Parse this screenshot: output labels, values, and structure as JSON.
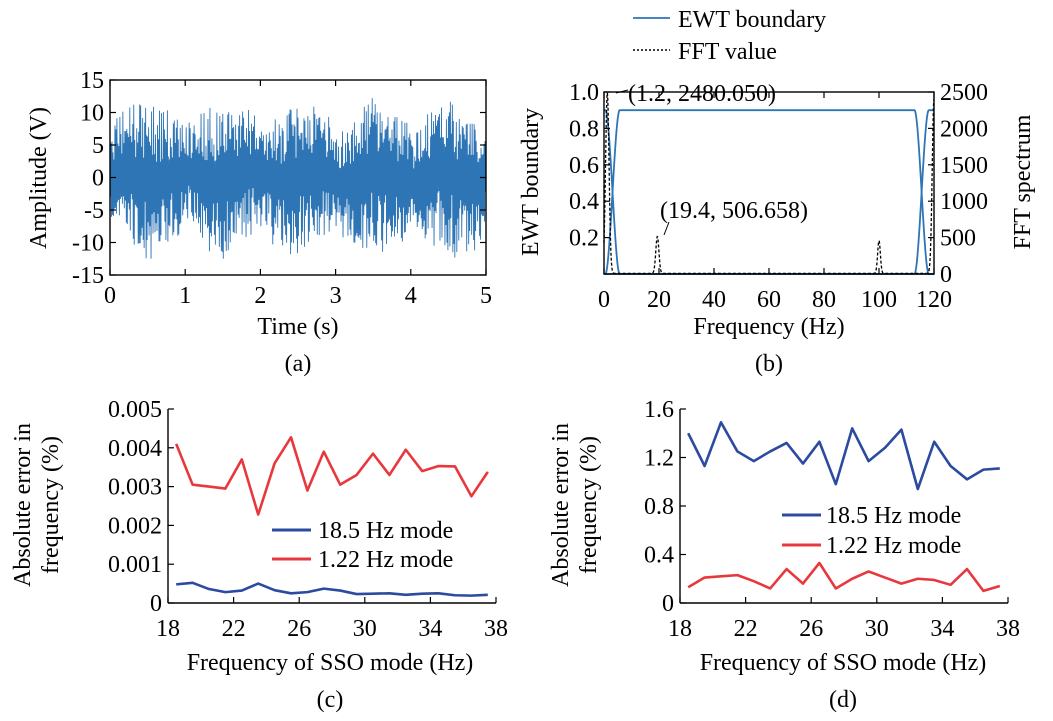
{
  "colors": {
    "blue": "#2e75b6",
    "navy": "#2b4aa0",
    "red": "#e8383d",
    "black": "#000000"
  },
  "chart_data": [
    {
      "panel": "(a)",
      "type": "line",
      "title": "",
      "xlabel": "Time (s)",
      "ylabel": "Amplitude (V)",
      "xlim": [
        0,
        5
      ],
      "ylim": [
        -15,
        15
      ],
      "xticks": [
        0,
        1,
        2,
        3,
        4,
        5
      ],
      "yticks": [
        -15,
        -10,
        -5,
        0,
        5,
        10,
        15
      ],
      "grid": false,
      "series": [
        {
          "color": "#2e75b6",
          "signal": "oscillatory waveform, amplitude about ±12 V, peaks about 12.5 V near t = 0.2 s, troughs about -12.5 V near t = 0.5 s",
          "x_range": [
            0,
            5
          ],
          "y_extent": [
            -12.5,
            12.5
          ]
        }
      ]
    },
    {
      "panel": "(b)",
      "type": "line",
      "title": "",
      "xlabel": "Frequency (Hz)",
      "ylabel": "EWT boundary",
      "y2label": "FFT spectrum",
      "xlim": [
        0,
        120
      ],
      "ylim": [
        0,
        1
      ],
      "y2lim": [
        0,
        2500
      ],
      "xticks": [
        0,
        20,
        40,
        60,
        80,
        100,
        120
      ],
      "yticks": [
        0.2,
        0.4,
        0.6,
        0.8,
        1.0
      ],
      "ytick_labels": [
        "0.2",
        "0.4",
        "0.6",
        "0.8",
        "1.0"
      ],
      "y2ticks": [
        0,
        500,
        1000,
        1500,
        2000,
        2500
      ],
      "grid": false,
      "legend": {
        "placement": "top",
        "entries": [
          "EWT boundary",
          "FFT value"
        ]
      },
      "annotations": [
        {
          "text": "(1.2, 2480.050)",
          "x": 1.2,
          "y": 2480.05
        },
        {
          "text": "(19.4, 506.658)",
          "x": 19.4,
          "y": 506.658
        }
      ],
      "series": [
        {
          "name": "EWT boundary",
          "color": "#2e75b6",
          "axis": "left",
          "plateau": 0.9,
          "boundaries": [
            3.1,
            115.5
          ],
          "transition_halfwidth": 2.6
        },
        {
          "name": "FFT value",
          "color": "#000000",
          "axis": "right",
          "dashed": true,
          "peaks": [
            {
              "x": 1.2,
              "y": 2480.05,
              "width": 0.9
            },
            {
              "x": 19.4,
              "y": 506.658,
              "width": 0.8
            },
            {
              "x": 100.0,
              "y": 450,
              "width": 0.7
            },
            {
              "x": 120.0,
              "y": 2400,
              "width": 0.9
            }
          ]
        }
      ]
    },
    {
      "panel": "(c)",
      "type": "line",
      "title": "",
      "xlabel": "Frequency of SSO mode (Hz)",
      "ylabel": [
        "Absolute error in",
        "frequency (%)"
      ],
      "xlim": [
        18,
        38
      ],
      "ylim": [
        0,
        0.005
      ],
      "xticks": [
        18,
        22,
        26,
        30,
        34,
        38
      ],
      "yticks": [
        0,
        0.001,
        0.002,
        0.003,
        0.004,
        0.005
      ],
      "ytick_labels": [
        "0",
        "0.001",
        "0.002",
        "0.003",
        "0.004",
        "0.005"
      ],
      "grid": false,
      "legend": {
        "placement": "bottom-right",
        "entries": [
          "18.5 Hz mode",
          "1.22 Hz mode"
        ]
      },
      "categories": [
        18.5,
        19.5,
        20.5,
        21.5,
        22.5,
        23.5,
        24.5,
        25.5,
        26.5,
        27.5,
        28.5,
        29.5,
        30.5,
        31.5,
        32.5,
        33.5,
        34.5,
        35.5,
        36.5,
        37.5
      ],
      "series": [
        {
          "name": "18.5 Hz mode",
          "color": "#2b4aa0",
          "values": [
            0.00048,
            0.00052,
            0.00036,
            0.00028,
            0.00032,
            0.0005,
            0.00033,
            0.00025,
            0.00028,
            0.00037,
            0.00032,
            0.00023,
            0.00024,
            0.00025,
            0.00021,
            0.00024,
            0.00025,
            0.0002,
            0.00019,
            0.00021
          ]
        },
        {
          "name": "1.22 Hz mode",
          "color": "#e8383d",
          "values": [
            0.0041,
            0.00305,
            0.003,
            0.00295,
            0.0037,
            0.00228,
            0.0036,
            0.00427,
            0.0029,
            0.0039,
            0.00305,
            0.0033,
            0.00385,
            0.0033,
            0.00395,
            0.0034,
            0.00353,
            0.00352,
            0.00275,
            0.00338
          ]
        }
      ]
    },
    {
      "panel": "(d)",
      "type": "line",
      "title": "",
      "xlabel": "Frequency of SSO mode (Hz)",
      "ylabel": [
        "Absolute error in",
        "frequency (%)"
      ],
      "xlim": [
        18,
        38
      ],
      "ylim": [
        0,
        1.6
      ],
      "xticks": [
        18,
        22,
        26,
        30,
        34,
        38
      ],
      "yticks": [
        0,
        0.4,
        0.8,
        1.2,
        1.6
      ],
      "ytick_labels": [
        "0",
        "0.4",
        "0.8",
        "1.2",
        "1.6"
      ],
      "grid": false,
      "legend": {
        "placement": "middle-right",
        "entries": [
          "18.5 Hz mode",
          "1.22 Hz mode"
        ]
      },
      "categories": [
        18.5,
        19.5,
        20.5,
        21.5,
        22.5,
        23.5,
        24.5,
        25.5,
        26.5,
        27.5,
        28.5,
        29.5,
        30.5,
        31.5,
        32.5,
        33.5,
        34.5,
        35.5,
        36.5,
        37.5
      ],
      "series": [
        {
          "name": "18.5 Hz mode",
          "color": "#2b4aa0",
          "values": [
            1.4,
            1.13,
            1.49,
            1.25,
            1.17,
            1.25,
            1.32,
            1.15,
            1.33,
            0.98,
            1.44,
            1.17,
            1.28,
            1.43,
            0.94,
            1.33,
            1.13,
            1.02,
            1.1,
            1.11
          ]
        },
        {
          "name": "1.22 Hz mode",
          "color": "#e8383d",
          "values": [
            0.13,
            0.21,
            0.22,
            0.23,
            0.18,
            0.12,
            0.28,
            0.16,
            0.33,
            0.12,
            0.2,
            0.26,
            0.21,
            0.16,
            0.2,
            0.19,
            0.15,
            0.28,
            0.1,
            0.14
          ]
        }
      ]
    }
  ]
}
